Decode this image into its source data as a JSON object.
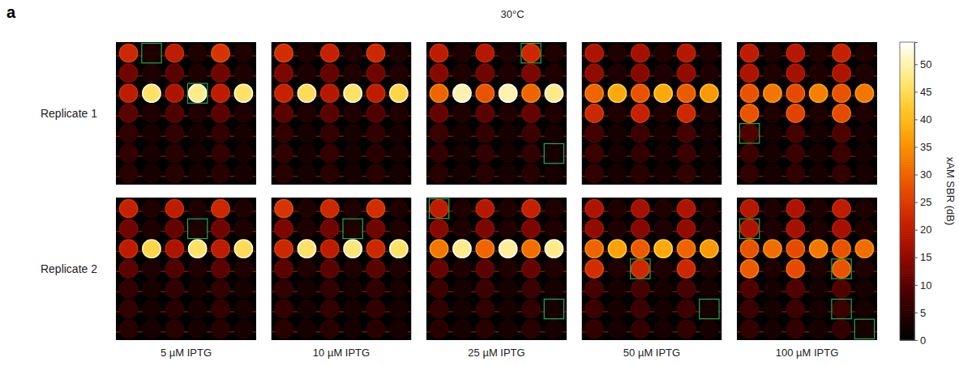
{
  "chart_data": {
    "type": "heatmap",
    "panel_label": "a",
    "title": "30°C",
    "rows": [
      "Replicate 1",
      "Replicate 2"
    ],
    "columns": [
      "5 µM IPTG",
      "10 µM IPTG",
      "25 µM IPTG",
      "50 µM IPTG",
      "100 µM IPTG"
    ],
    "tick_labels": false,
    "cells": [
      [
        [
          [
            22,
            4,
            20,
            4,
            24,
            4
          ],
          [
            12,
            4,
            10,
            4,
            12,
            4
          ],
          [
            20,
            46,
            18,
            48,
            20,
            46
          ],
          [
            10,
            4,
            9,
            4,
            10,
            4
          ],
          [
            6,
            3,
            6,
            3,
            6,
            3
          ],
          [
            6,
            3,
            5,
            3,
            6,
            3
          ],
          [
            5,
            3,
            5,
            3,
            5,
            3
          ]
        ],
        [
          [
            23,
            4,
            21,
            4,
            22,
            4
          ],
          [
            13,
            4,
            11,
            4,
            12,
            4
          ],
          [
            21,
            45,
            19,
            46,
            20,
            44
          ],
          [
            10,
            4,
            10,
            4,
            9,
            4
          ],
          [
            6,
            3,
            6,
            3,
            6,
            3
          ],
          [
            6,
            3,
            6,
            3,
            5,
            3
          ],
          [
            5,
            3,
            5,
            3,
            5,
            3
          ]
        ],
        [
          [
            20,
            4,
            19,
            4,
            22,
            4
          ],
          [
            14,
            4,
            12,
            4,
            13,
            4
          ],
          [
            30,
            50,
            28,
            50,
            30,
            48
          ],
          [
            11,
            4,
            10,
            4,
            11,
            4
          ],
          [
            7,
            3,
            6,
            3,
            7,
            3
          ],
          [
            6,
            3,
            6,
            3,
            6,
            3
          ],
          [
            5,
            3,
            5,
            3,
            5,
            3
          ]
        ],
        [
          [
            18,
            4,
            17,
            4,
            19,
            4
          ],
          [
            15,
            4,
            14,
            4,
            15,
            4
          ],
          [
            30,
            38,
            28,
            38,
            29,
            36
          ],
          [
            22,
            4,
            21,
            4,
            22,
            4
          ],
          [
            8,
            3,
            7,
            3,
            8,
            3
          ],
          [
            7,
            3,
            6,
            3,
            7,
            3
          ],
          [
            6,
            3,
            5,
            3,
            6,
            3
          ]
        ],
        [
          [
            20,
            4,
            19,
            4,
            21,
            4
          ],
          [
            18,
            4,
            17,
            4,
            18,
            4
          ],
          [
            28,
            32,
            27,
            33,
            28,
            32
          ],
          [
            28,
            4,
            26,
            4,
            27,
            4
          ],
          [
            9,
            3,
            8,
            3,
            9,
            3
          ],
          [
            7,
            3,
            7,
            3,
            7,
            3
          ],
          [
            6,
            3,
            6,
            3,
            6,
            3
          ]
        ]
      ],
      [
        [
          [
            21,
            4,
            20,
            4,
            22,
            4
          ],
          [
            12,
            4,
            11,
            4,
            12,
            4
          ],
          [
            20,
            44,
            18,
            46,
            20,
            45
          ],
          [
            10,
            4,
            9,
            4,
            10,
            4
          ],
          [
            6,
            3,
            6,
            3,
            6,
            3
          ],
          [
            6,
            3,
            5,
            3,
            6,
            3
          ],
          [
            5,
            3,
            5,
            3,
            5,
            3
          ]
        ],
        [
          [
            24,
            4,
            22,
            4,
            23,
            4
          ],
          [
            13,
            4,
            12,
            4,
            12,
            4
          ],
          [
            22,
            46,
            20,
            47,
            22,
            46
          ],
          [
            10,
            4,
            10,
            4,
            10,
            4
          ],
          [
            6,
            3,
            6,
            3,
            6,
            3
          ],
          [
            6,
            3,
            6,
            3,
            6,
            3
          ],
          [
            5,
            3,
            5,
            3,
            5,
            3
          ]
        ],
        [
          [
            20,
            4,
            19,
            4,
            21,
            4
          ],
          [
            14,
            4,
            13,
            4,
            13,
            4
          ],
          [
            32,
            48,
            30,
            49,
            31,
            48
          ],
          [
            11,
            4,
            10,
            4,
            11,
            4
          ],
          [
            7,
            3,
            7,
            3,
            7,
            3
          ],
          [
            6,
            3,
            6,
            3,
            6,
            3
          ],
          [
            5,
            3,
            5,
            3,
            5,
            3
          ]
        ],
        [
          [
            18,
            4,
            17,
            4,
            18,
            4
          ],
          [
            15,
            4,
            14,
            4,
            15,
            4
          ],
          [
            30,
            37,
            29,
            38,
            30,
            36
          ],
          [
            23,
            4,
            22,
            4,
            22,
            4
          ],
          [
            8,
            3,
            8,
            3,
            8,
            3
          ],
          [
            7,
            3,
            7,
            3,
            7,
            3
          ],
          [
            6,
            3,
            6,
            3,
            6,
            3
          ]
        ],
        [
          [
            19,
            4,
            18,
            4,
            20,
            4
          ],
          [
            18,
            4,
            17,
            4,
            17,
            4
          ],
          [
            28,
            31,
            27,
            32,
            28,
            31
          ],
          [
            29,
            4,
            27,
            4,
            28,
            4
          ],
          [
            9,
            3,
            9,
            3,
            9,
            3
          ],
          [
            7,
            3,
            7,
            3,
            7,
            3
          ],
          [
            6,
            3,
            6,
            3,
            6,
            3
          ]
        ]
      ]
    ],
    "boxed": [
      [
        [
          [
            0,
            1
          ],
          [
            2,
            3
          ]
        ],
        [],
        [
          [
            0,
            4
          ],
          [
            5,
            5
          ]
        ],
        [],
        [
          [
            4,
            0
          ]
        ]
      ],
      [
        [
          [
            1,
            3
          ]
        ],
        [
          [
            1,
            3
          ]
        ],
        [
          [
            0,
            0
          ],
          [
            5,
            5
          ]
        ],
        [
          [
            3,
            2
          ],
          [
            5,
            5
          ]
        ],
        [
          [
            1,
            0
          ],
          [
            3,
            4
          ],
          [
            5,
            4
          ],
          [
            6,
            5
          ]
        ]
      ]
    ],
    "colorbar": {
      "label": "xAM SBR (dB)",
      "range": [
        0,
        54
      ],
      "ticks": [
        0,
        5,
        10,
        15,
        20,
        25,
        30,
        35,
        40,
        45,
        50
      ]
    }
  }
}
